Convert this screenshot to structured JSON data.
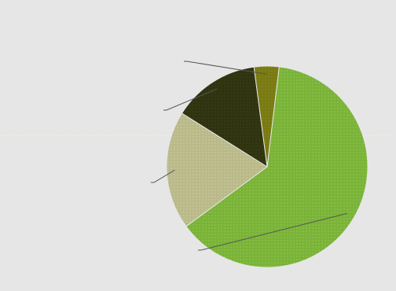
{
  "chart_data": {
    "type": "pie",
    "title": "",
    "slices": [
      {
        "label": "",
        "value": 63,
        "color": "#7ab23a"
      },
      {
        "label": "",
        "value": 19,
        "color": "#b9b98a"
      },
      {
        "label": "",
        "value": 14,
        "color": "#2f3310"
      },
      {
        "label": "",
        "value": 4,
        "color": "#7a7a14"
      }
    ],
    "legend": "none",
    "grid": false
  }
}
